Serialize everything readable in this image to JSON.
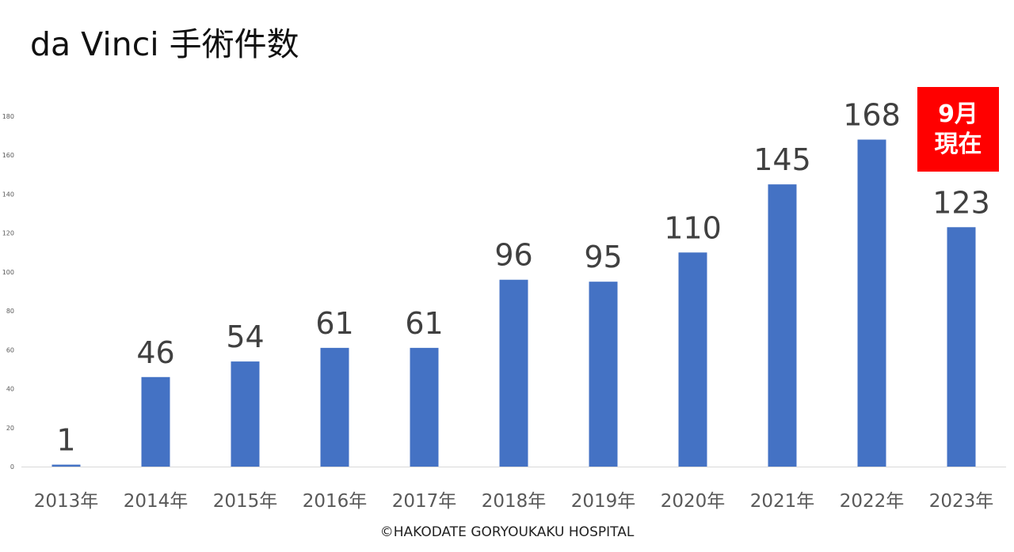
{
  "title": "da Vinci 手術件数",
  "badge": {
    "line1": "9月",
    "line2": "現在",
    "color": "#ff0000"
  },
  "footer": "©HAKODATE GORYOUKAKU HOSPITAL",
  "chart_data": {
    "type": "bar",
    "title": "da Vinci 手術件数",
    "categories": [
      "2013年",
      "2014年",
      "2015年",
      "2016年",
      "2017年",
      "2018年",
      "2019年",
      "2020年",
      "2021年",
      "2022年",
      "2023年"
    ],
    "values": [
      1,
      46,
      54,
      61,
      61,
      96,
      95,
      110,
      145,
      168,
      123
    ],
    "ylim": [
      0,
      180
    ],
    "yticks": [
      0,
      20,
      40,
      60,
      80,
      100,
      120,
      140,
      160,
      180
    ],
    "xlabel": "",
    "ylabel": "",
    "grid": false,
    "bar_color": "#4472c4",
    "data_labels": true
  }
}
